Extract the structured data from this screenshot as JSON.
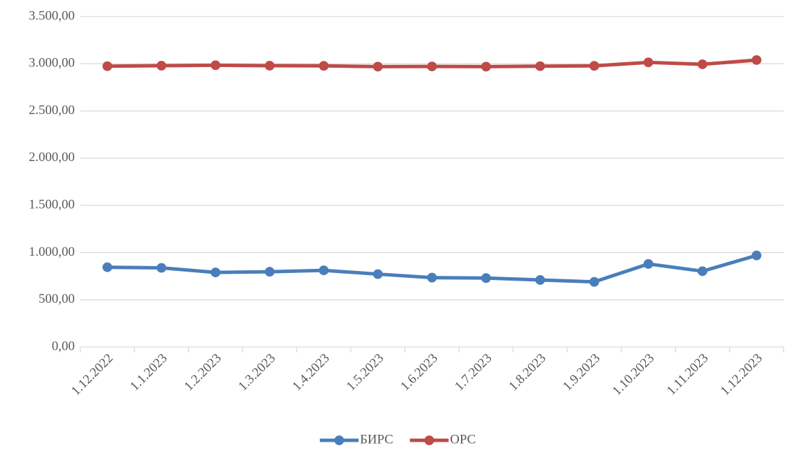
{
  "chart_data": {
    "type": "line",
    "categories": [
      "1.12.2022",
      "1.1.2023",
      "1.2.2023",
      "1.3.2023",
      "1.4.2023",
      "1.5.2023",
      "1.6.2023",
      "1.7.2023",
      "1.8.2023",
      "1.9.2023",
      "1.10.2023",
      "1.11.2023",
      "1.12.2023"
    ],
    "series": [
      {
        "name": "БИРС",
        "color": "#4a7ebb",
        "values": [
          845,
          838,
          790,
          797,
          812,
          772,
          735,
          730,
          710,
          690,
          880,
          803,
          970
        ]
      },
      {
        "name": "ОРС",
        "color": "#be4b48",
        "values": [
          2975,
          2980,
          2985,
          2980,
          2978,
          2970,
          2972,
          2970,
          2975,
          2978,
          3015,
          2995,
          3040
        ]
      }
    ],
    "ylim": [
      0,
      3500
    ],
    "yticks": [
      {
        "value": 0,
        "label": "0,00"
      },
      {
        "value": 500,
        "label": "500,00"
      },
      {
        "value": 1000,
        "label": "1.000,00"
      },
      {
        "value": 1500,
        "label": "1.500,00"
      },
      {
        "value": 2000,
        "label": "2.000,00"
      },
      {
        "value": 2500,
        "label": "2.500,00"
      },
      {
        "value": 3000,
        "label": "3.000,00"
      },
      {
        "value": 3500,
        "label": "3.500,00"
      }
    ],
    "grid": true,
    "legend": "bottom"
  }
}
